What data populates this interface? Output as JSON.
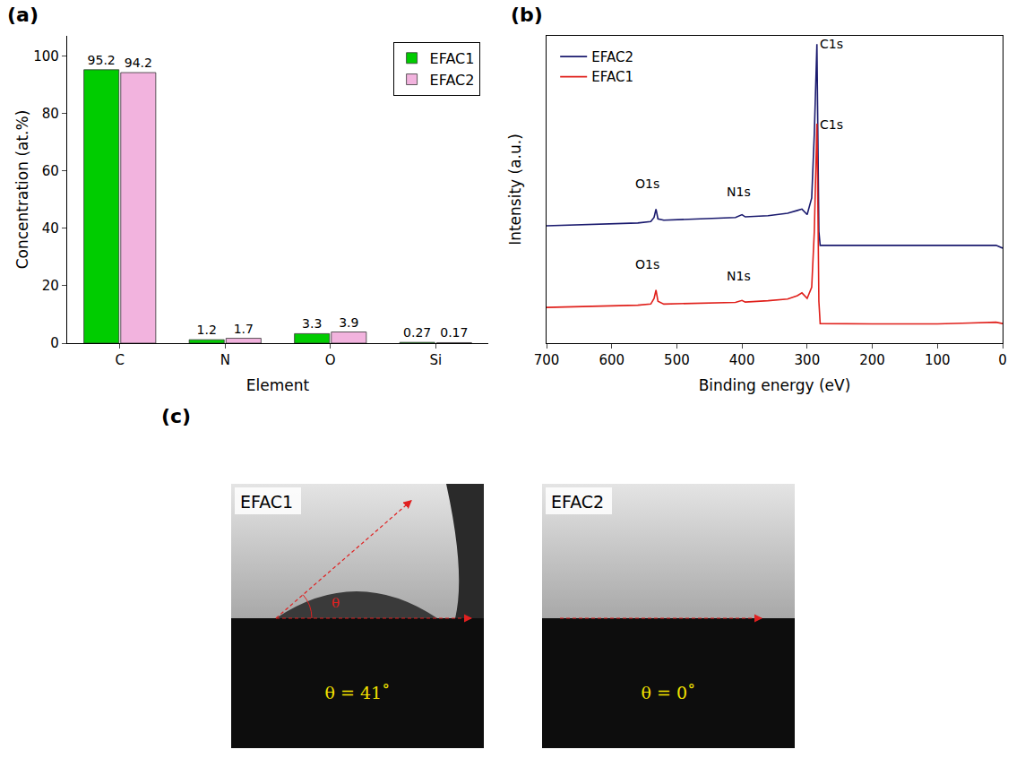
{
  "chart_data": [
    {
      "type": "bar",
      "panel": "(a)",
      "x_label": "Element",
      "y_label": "Concentration (at.%)",
      "categories": [
        "C",
        "N",
        "O",
        "Si"
      ],
      "series": [
        {
          "name": "EFAC1",
          "color": "#00cc00",
          "values": [
            95.2,
            1.2,
            3.3,
            0.27
          ]
        },
        {
          "name": "EFAC2",
          "color": "#f2b3de",
          "values": [
            94.2,
            1.7,
            3.9,
            0.17
          ]
        }
      ],
      "ylim": [
        0,
        107
      ],
      "yticks": [
        0,
        20,
        40,
        60,
        80,
        100
      ],
      "data_labels": true,
      "legend": "top-right",
      "grid": false
    },
    {
      "type": "line",
      "panel": "(b)",
      "x_label": "Binding energy (eV)",
      "y_label": "Intensity (a.u.)",
      "x": [
        700,
        650,
        600,
        560,
        540,
        535,
        532,
        529,
        520,
        500,
        450,
        410,
        400,
        395,
        360,
        330,
        315,
        308,
        300,
        293,
        289,
        286,
        285,
        284,
        282,
        280,
        250,
        200,
        150,
        100,
        50,
        10,
        0
      ],
      "series": [
        {
          "name": "EFAC2",
          "color": "#1a1a6e",
          "values": [
            42,
            42.3,
            42.7,
            43,
            43.5,
            45,
            48,
            44.5,
            44,
            44.2,
            44.6,
            45,
            46,
            45.2,
            45.6,
            46.5,
            47.5,
            48,
            46,
            52,
            75,
            100,
            107,
            85,
            40,
            35,
            35,
            35,
            35,
            35,
            35,
            35,
            34
          ]
        },
        {
          "name": "EFAC1",
          "color": "#e0201b",
          "values": [
            12.8,
            13,
            13.3,
            13.6,
            14,
            16,
            19,
            15,
            14,
            14.1,
            14.3,
            14.6,
            15.3,
            14.7,
            15.2,
            15.8,
            17,
            18,
            16,
            20,
            40,
            70,
            78.6,
            60,
            15,
            7,
            6.9,
            6.9,
            6.9,
            6.9,
            7.2,
            7.5,
            7
          ]
        }
      ],
      "annotations": [
        {
          "x": 283,
          "y": 104,
          "text": "C1s"
        },
        {
          "x": 545,
          "y": 54,
          "text": "O1s"
        },
        {
          "x": 405,
          "y": 51,
          "text": "N1s"
        },
        {
          "x": 283,
          "y": 75,
          "text": "C1s"
        },
        {
          "x": 545,
          "y": 25,
          "text": "O1s"
        },
        {
          "x": 405,
          "y": 21,
          "text": "N1s"
        }
      ],
      "xlim": [
        700,
        0
      ],
      "xticks": [
        700,
        600,
        500,
        400,
        300,
        200,
        100,
        0
      ],
      "ylim": [
        0,
        110
      ],
      "tick_labels": "x",
      "legend": "top-left",
      "grid": false
    }
  ],
  "panel_c": {
    "label": "(c)",
    "images": [
      {
        "name": "EFAC1",
        "angle_symbol": "θ",
        "angle_label": "θ = 41˚",
        "contact_angle": 41
      },
      {
        "name": "EFAC2",
        "angle_label": "θ = 0˚",
        "contact_angle": 0
      }
    ]
  }
}
